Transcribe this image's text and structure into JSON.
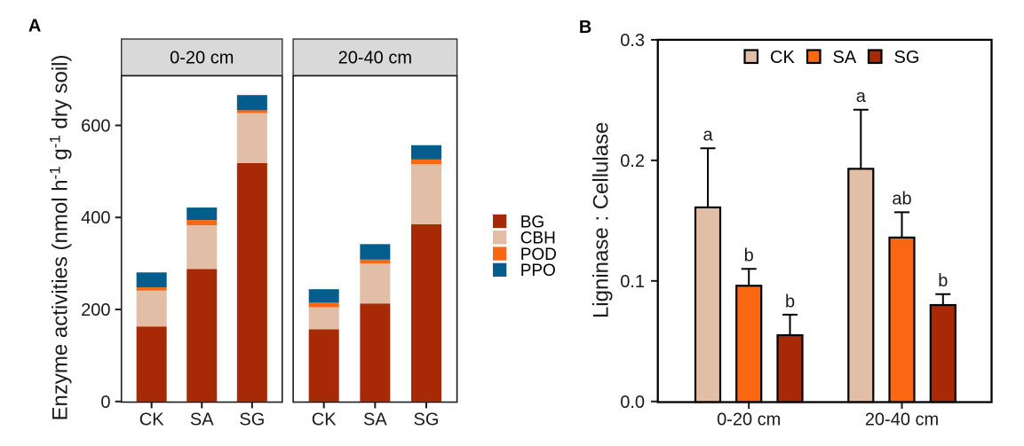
{
  "figure": {
    "background": "#ffffff",
    "text_color": "#1a1a1a",
    "strip_fill": "#d9d9d9",
    "strip_border": "#333333",
    "panel_border": "#1a1a1a"
  },
  "chart_data": [
    {
      "id": "panel-a",
      "panel_label": "A",
      "type": "bar",
      "subtype": "stacked",
      "facets": [
        "0-20 cm",
        "20-40 cm"
      ],
      "categories": [
        "CK",
        "SA",
        "SG"
      ],
      "series": [
        {
          "name": "BG",
          "color": "#a82905",
          "values": {
            "0-20 cm": [
              163,
              288,
              518
            ],
            "20-40 cm": [
              157,
              213,
              385
            ]
          }
        },
        {
          "name": "CBH",
          "color": "#e2bea7",
          "values": {
            "0-20 cm": [
              78,
              95,
              109
            ],
            "20-40 cm": [
              48,
              87,
              131
            ]
          }
        },
        {
          "name": "POD",
          "color": "#fa6712",
          "values": {
            "0-20 cm": [
              7,
              11.5,
              6
            ],
            "20-40 cm": [
              10,
              8.5,
              10
            ]
          }
        },
        {
          "name": "PPO",
          "color": "#045d8c",
          "values": {
            "0-20 cm": [
              32.5,
              27,
              33
            ],
            "20-40 cm": [
              29,
              33.5,
              31
            ]
          }
        }
      ],
      "ylabel_parts": [
        "Enzyme activities (nmol h",
        {
          "sup": "-1"
        },
        " g",
        {
          "sup": "-1"
        },
        " dry soil)"
      ],
      "yticks": [
        {
          "v": 0,
          "label": "0"
        },
        {
          "v": 200,
          "label": "200"
        },
        {
          "v": 400,
          "label": "400"
        },
        {
          "v": 600,
          "label": "600"
        }
      ],
      "ylim": [
        0,
        708
      ],
      "legend": [
        "BG",
        "CBH",
        "POD",
        "PPO"
      ],
      "legend_position": "right"
    },
    {
      "id": "panel-b",
      "panel_label": "B",
      "type": "bar",
      "subtype": "grouped",
      "categories": [
        "0-20 cm",
        "20-40 cm"
      ],
      "series": [
        {
          "name": "CK",
          "color": "#e2bea7",
          "values": [
            0.161,
            0.193
          ],
          "errors": [
            0.049,
            0.049
          ],
          "letters": [
            "a",
            "a"
          ]
        },
        {
          "name": "SA",
          "color": "#fa6712",
          "values": [
            0.096,
            0.136
          ],
          "errors": [
            0.014,
            0.021
          ],
          "letters": [
            "b",
            "ab"
          ]
        },
        {
          "name": "SG",
          "color": "#a82905",
          "values": [
            0.055,
            0.08
          ],
          "errors": [
            0.017,
            0.009
          ],
          "letters": [
            "b",
            "b"
          ]
        }
      ],
      "ylabel": "Ligninase : Cellulase",
      "yticks": [
        {
          "v": 0.0,
          "label": "0.0"
        },
        {
          "v": 0.1,
          "label": "0.1"
        },
        {
          "v": 0.2,
          "label": "0.2"
        },
        {
          "v": 0.3,
          "label": "0.3"
        }
      ],
      "ylim": [
        0,
        0.3
      ],
      "legend": [
        "CK",
        "SA",
        "SG"
      ],
      "legend_position": "top-inside"
    }
  ]
}
